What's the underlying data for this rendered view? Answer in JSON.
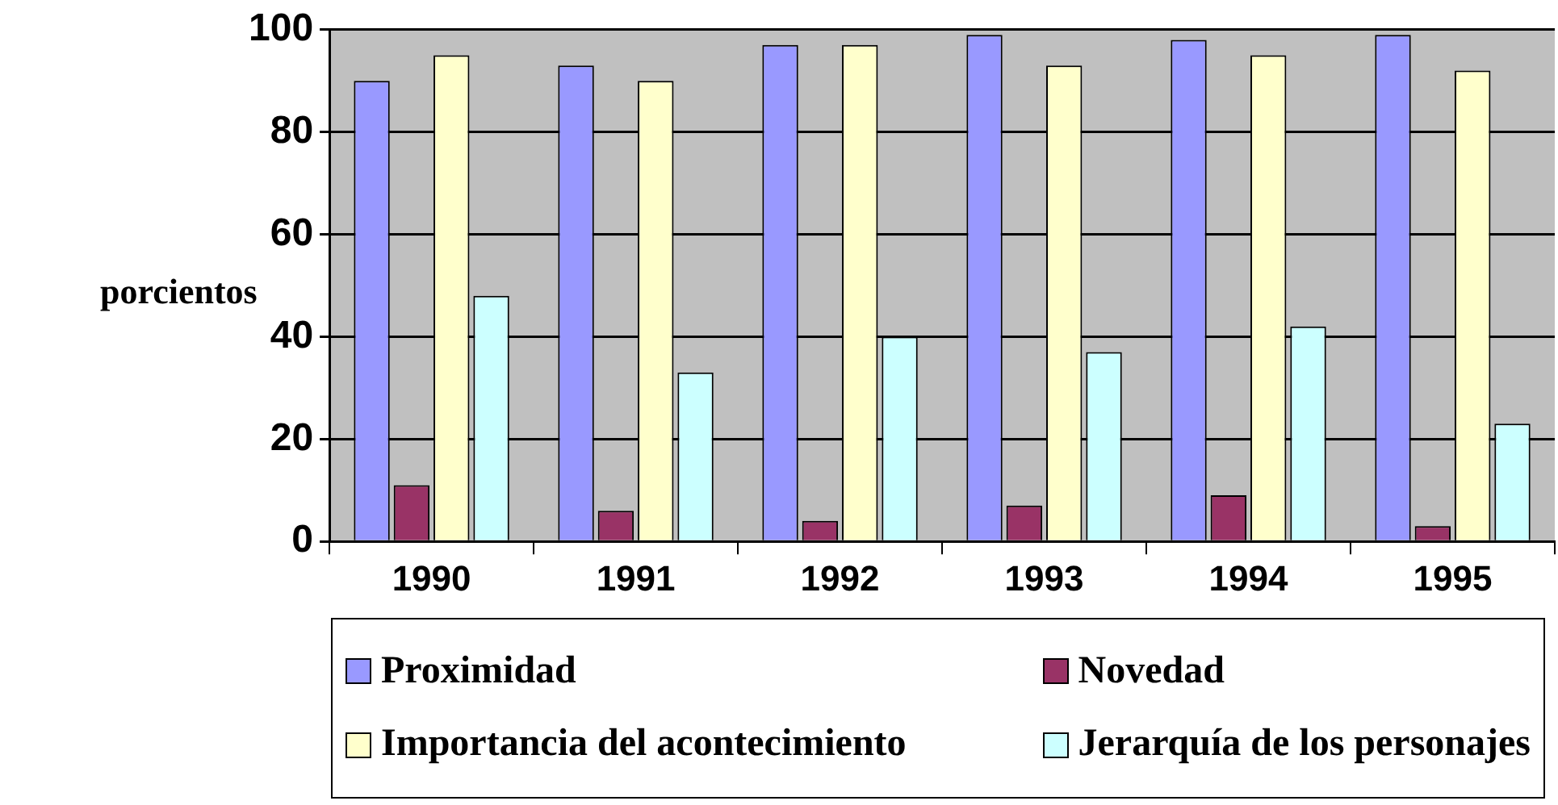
{
  "chart_data": {
    "type": "bar",
    "ylabel": "porcientos",
    "categories": [
      "1990",
      "1991",
      "1992",
      "1993",
      "1994",
      "1995"
    ],
    "series": [
      {
        "name": "Proximidad",
        "color": "#9999ff",
        "values": [
          90,
          93,
          97,
          99,
          98,
          99
        ]
      },
      {
        "name": "Novedad",
        "color": "#993366",
        "values": [
          11,
          6,
          4,
          7,
          9,
          3
        ]
      },
      {
        "name": "Importancia del acontecimiento",
        "color": "#ffffcc",
        "values": [
          95,
          90,
          97,
          93,
          95,
          92
        ]
      },
      {
        "name": "Jerarquía de los personajes",
        "color": "#ccffff",
        "values": [
          48,
          33,
          40,
          37,
          42,
          23
        ]
      }
    ],
    "ylim": [
      0,
      100
    ],
    "yticks": [
      0,
      20,
      40,
      60,
      80,
      100
    ],
    "grid": "y",
    "legend": "bottom"
  }
}
